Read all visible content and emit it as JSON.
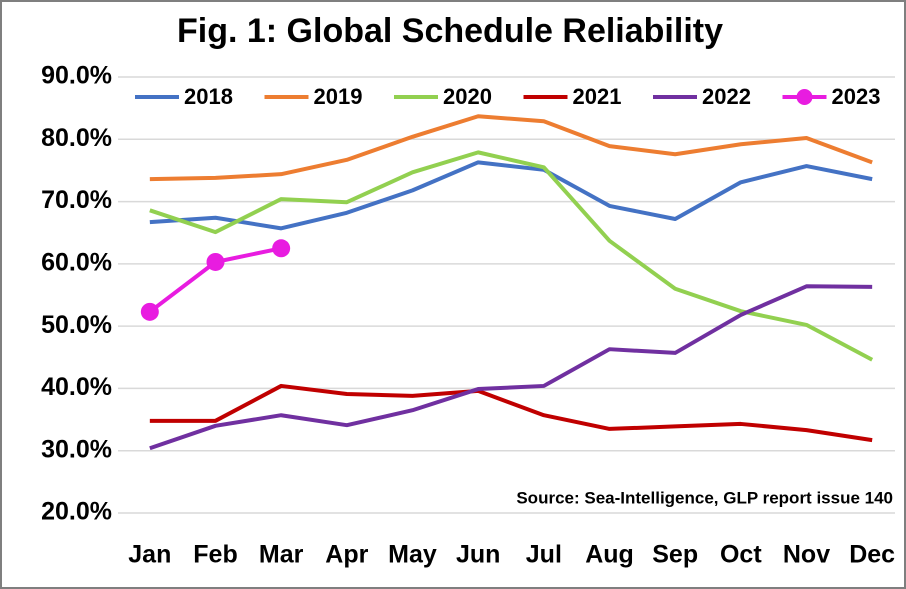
{
  "chart_data": {
    "type": "line",
    "title": "Fig. 1: Global Schedule Reliability",
    "annotation": "Source: Sea-Intelligence, GLP report issue 140",
    "categories": [
      "Jan",
      "Feb",
      "Mar",
      "Apr",
      "May",
      "Jun",
      "Jul",
      "Aug",
      "Sep",
      "Oct",
      "Nov",
      "Dec"
    ],
    "series": [
      {
        "name": "2018",
        "color": "#4472c4",
        "values": [
          66.7,
          67.4,
          65.7,
          68.2,
          71.8,
          76.3,
          75.1,
          69.3,
          67.2,
          73.1,
          75.7,
          73.6
        ]
      },
      {
        "name": "2019",
        "color": "#ed7d31",
        "values": [
          73.6,
          73.8,
          74.4,
          76.7,
          80.4,
          83.7,
          82.9,
          78.9,
          77.6,
          79.2,
          80.2,
          76.3
        ]
      },
      {
        "name": "2020",
        "color": "#92d050",
        "values": [
          68.6,
          65.1,
          70.4,
          69.9,
          74.7,
          77.9,
          75.5,
          63.7,
          56.0,
          52.4,
          50.2,
          44.6
        ]
      },
      {
        "name": "2021",
        "color": "#c00000",
        "values": [
          34.8,
          34.8,
          40.4,
          39.1,
          38.8,
          39.6,
          35.7,
          33.5,
          33.9,
          34.3,
          33.3,
          31.7
        ]
      },
      {
        "name": "2022",
        "color": "#7030a0",
        "values": [
          30.4,
          34.0,
          35.7,
          34.1,
          36.5,
          39.9,
          40.4,
          46.3,
          45.7,
          51.8,
          56.4,
          56.3
        ]
      },
      {
        "name": "2023",
        "color": "#e81ce0",
        "marker": "circle",
        "values": [
          52.3,
          60.3,
          62.5,
          null,
          null,
          null,
          null,
          null,
          null,
          null,
          null,
          null
        ]
      }
    ],
    "ylim": [
      20,
      90
    ],
    "yticks": [
      {
        "value": 20,
        "label": "20.0%"
      },
      {
        "value": 30,
        "label": "30.0%"
      },
      {
        "value": 40,
        "label": "40.0%"
      },
      {
        "value": 50,
        "label": "50.0%"
      },
      {
        "value": 60,
        "label": "60.0%"
      },
      {
        "value": 70,
        "label": "70.0%"
      },
      {
        "value": 80,
        "label": "80.0%"
      },
      {
        "value": 90,
        "label": "90.0%"
      }
    ],
    "grid": true,
    "legend": "top"
  }
}
